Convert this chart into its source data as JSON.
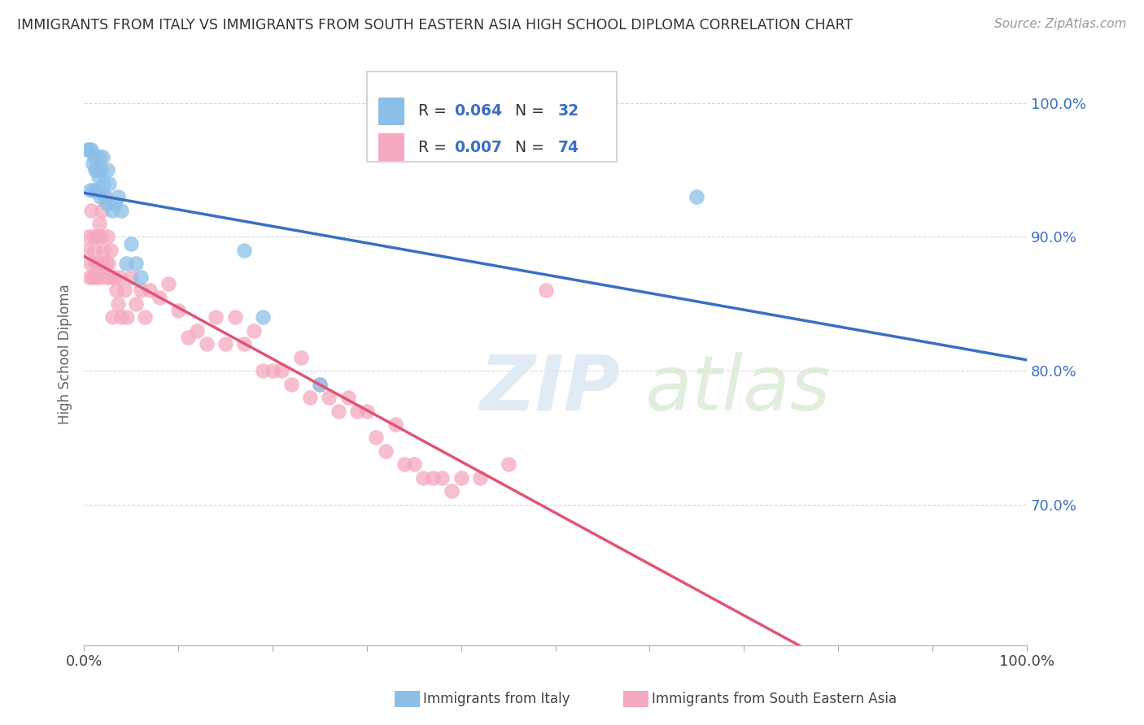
{
  "title": "IMMIGRANTS FROM ITALY VS IMMIGRANTS FROM SOUTH EASTERN ASIA HIGH SCHOOL DIPLOMA CORRELATION CHART",
  "source": "Source: ZipAtlas.com",
  "ylabel": "High School Diploma",
  "ytick_labels": [
    "70.0%",
    "80.0%",
    "90.0%",
    "100.0%"
  ],
  "ytick_values": [
    0.7,
    0.8,
    0.9,
    1.0
  ],
  "legend_entry1_r": "0.064",
  "legend_entry1_n": "32",
  "legend_entry2_r": "0.007",
  "legend_entry2_n": "74",
  "legend_label1": "Immigrants from Italy",
  "legend_label2": "Immigrants from South Eastern Asia",
  "color_italy": "#8BBFE8",
  "color_sea": "#F5A8BE",
  "line_color_italy": "#3A6FC4",
  "line_color_sea": "#E05575",
  "background_color": "#FFFFFF",
  "italy_x": [
    0.003,
    0.006,
    0.007,
    0.008,
    0.009,
    0.01,
    0.011,
    0.012,
    0.013,
    0.014,
    0.015,
    0.016,
    0.017,
    0.018,
    0.02,
    0.021,
    0.022,
    0.024,
    0.025,
    0.027,
    0.03,
    0.033,
    0.036,
    0.04,
    0.045,
    0.05,
    0.055,
    0.06,
    0.17,
    0.19,
    0.25,
    0.65
  ],
  "italy_y": [
    0.965,
    0.965,
    0.935,
    0.965,
    0.955,
    0.935,
    0.96,
    0.95,
    0.935,
    0.95,
    0.945,
    0.96,
    0.93,
    0.95,
    0.96,
    0.94,
    0.93,
    0.925,
    0.95,
    0.94,
    0.92,
    0.925,
    0.93,
    0.92,
    0.88,
    0.895,
    0.88,
    0.87,
    0.89,
    0.84,
    0.79,
    0.93
  ],
  "sea_x": [
    0.003,
    0.005,
    0.006,
    0.007,
    0.008,
    0.009,
    0.01,
    0.011,
    0.012,
    0.013,
    0.014,
    0.015,
    0.016,
    0.017,
    0.018,
    0.019,
    0.02,
    0.021,
    0.022,
    0.023,
    0.024,
    0.025,
    0.026,
    0.027,
    0.028,
    0.03,
    0.032,
    0.034,
    0.036,
    0.038,
    0.04,
    0.043,
    0.046,
    0.05,
    0.055,
    0.06,
    0.065,
    0.07,
    0.08,
    0.09,
    0.1,
    0.11,
    0.12,
    0.13,
    0.14,
    0.15,
    0.16,
    0.17,
    0.18,
    0.19,
    0.2,
    0.21,
    0.22,
    0.23,
    0.24,
    0.25,
    0.26,
    0.27,
    0.28,
    0.29,
    0.3,
    0.31,
    0.32,
    0.33,
    0.34,
    0.35,
    0.36,
    0.37,
    0.38,
    0.39,
    0.4,
    0.42,
    0.45,
    0.49
  ],
  "sea_y": [
    0.89,
    0.9,
    0.87,
    0.88,
    0.92,
    0.87,
    0.9,
    0.89,
    0.88,
    0.87,
    0.9,
    0.88,
    0.91,
    0.87,
    0.9,
    0.92,
    0.88,
    0.89,
    0.93,
    0.88,
    0.87,
    0.9,
    0.88,
    0.87,
    0.89,
    0.84,
    0.87,
    0.86,
    0.85,
    0.87,
    0.84,
    0.86,
    0.84,
    0.87,
    0.85,
    0.86,
    0.84,
    0.86,
    0.855,
    0.865,
    0.845,
    0.825,
    0.83,
    0.82,
    0.84,
    0.82,
    0.84,
    0.82,
    0.83,
    0.8,
    0.8,
    0.8,
    0.79,
    0.81,
    0.78,
    0.79,
    0.78,
    0.77,
    0.78,
    0.77,
    0.77,
    0.75,
    0.74,
    0.76,
    0.73,
    0.73,
    0.72,
    0.72,
    0.72,
    0.71,
    0.72,
    0.72,
    0.73,
    0.86
  ],
  "xlim": [
    0.0,
    1.0
  ],
  "ylim": [
    0.595,
    1.03
  ],
  "xticks": [
    0.0,
    0.1,
    0.2,
    0.3,
    0.4,
    0.5,
    0.6,
    0.7,
    0.8,
    0.9,
    1.0
  ]
}
